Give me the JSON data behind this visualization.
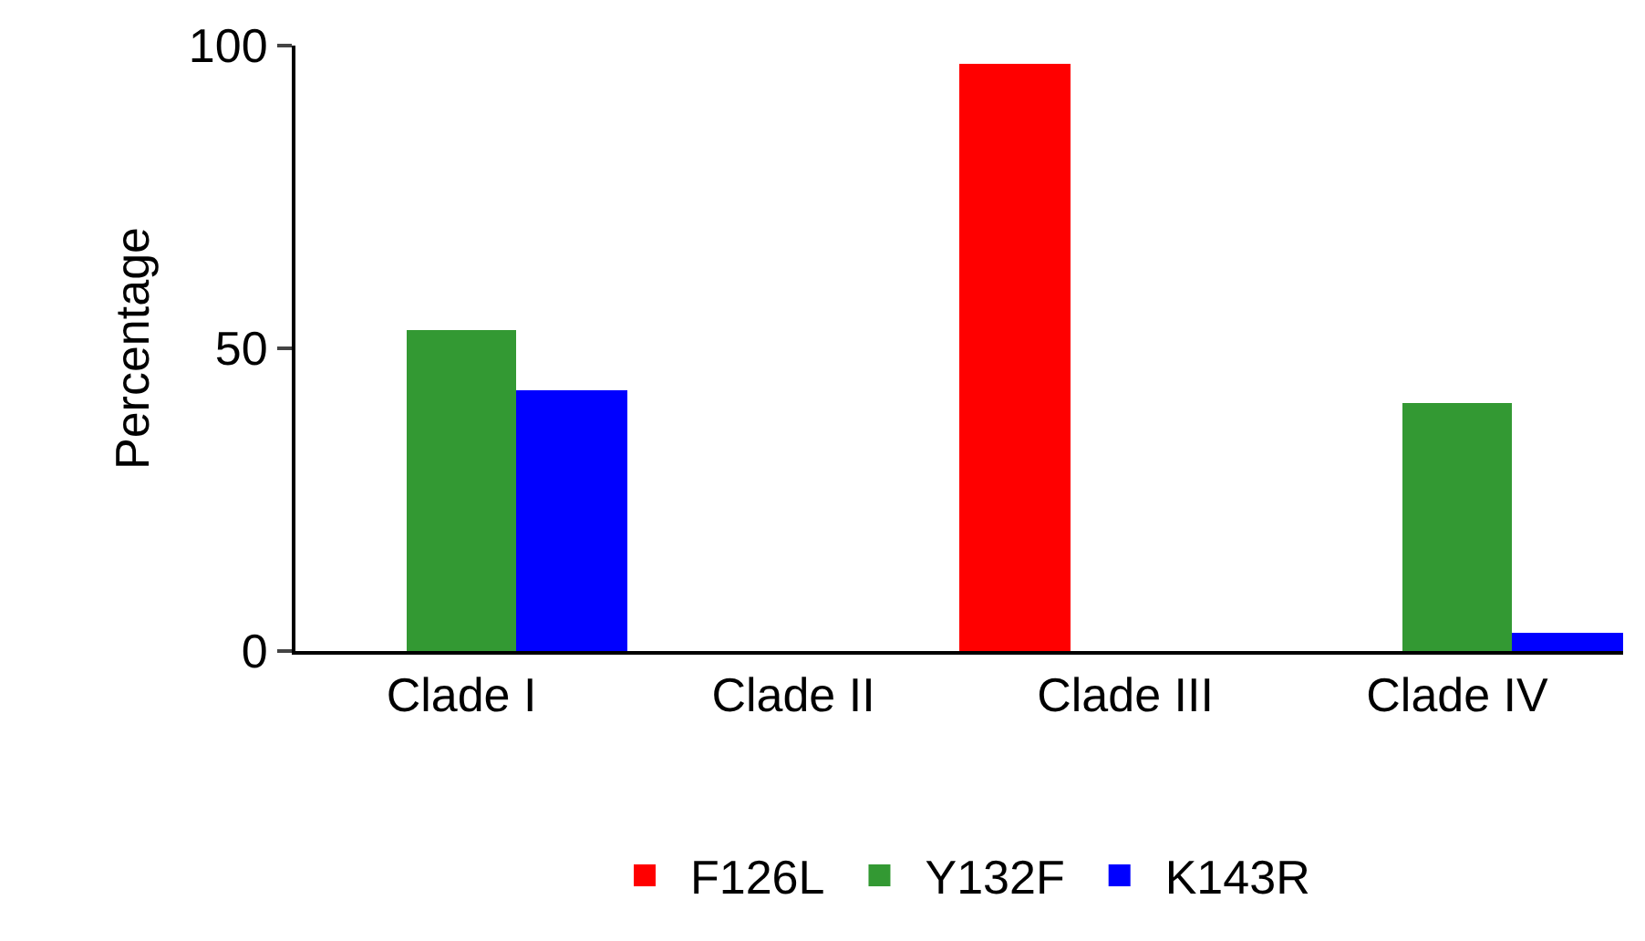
{
  "chart_data": {
    "type": "bar",
    "ylabel": "Percentage",
    "categories": [
      "Clade I",
      "Clade II",
      "Clade III",
      "Clade IV"
    ],
    "series": [
      {
        "name": "F126L",
        "color": "#ff0000",
        "values": [
          0,
          0,
          97,
          0
        ]
      },
      {
        "name": "Y132F",
        "color": "#339933",
        "values": [
          53,
          0,
          0,
          41
        ]
      },
      {
        "name": "K143R",
        "color": "#0000ff",
        "values": [
          43,
          0,
          0,
          3
        ]
      }
    ],
    "ylim": [
      0,
      100
    ],
    "yticks": [
      0,
      50,
      100
    ],
    "grid": false,
    "legend": "bottom"
  }
}
